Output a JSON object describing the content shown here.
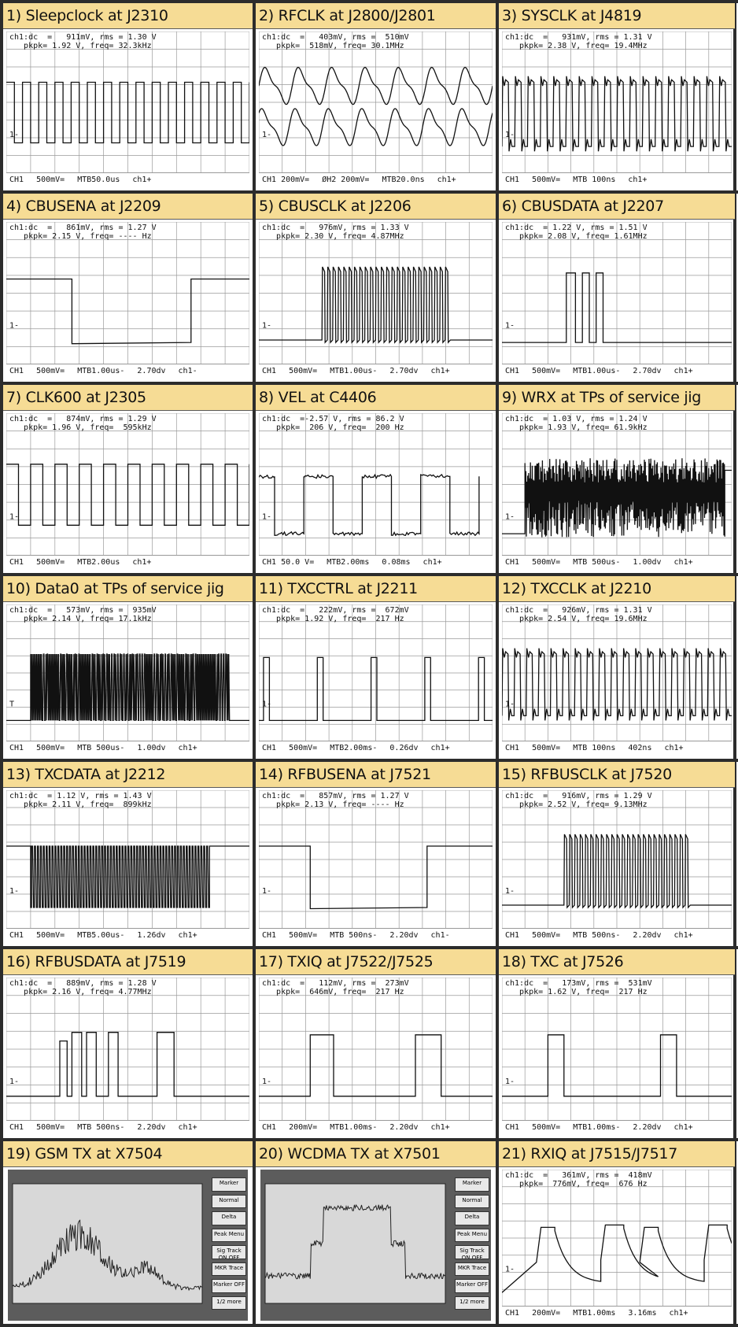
{
  "panels": [
    {
      "title": "1) Sleepclock at J2310",
      "hdr": "ch1:dc  =   911mV, rms = 1.30 V\n   pkpk= 1.92 V, freq= 32.3kHz",
      "ftr": [
        "CH1",
        "500mV=",
        "MTB50.0us",
        "ch1+"
      ],
      "wave": "square",
      "periods": 15,
      "marker": "1-"
    },
    {
      "title": "2) RFCLK at J2800/J2801",
      "hdr": "ch1:dc  =   403mV, rms =  510mV\n   pkpk=  518mV, freq= 30.1MHz",
      "ftr": [
        "CH1 200mV=",
        "ØH2 200mV=",
        "MTB20.0ns",
        "ch1+"
      ],
      "wave": "dualsine",
      "periods": 7,
      "marker": "1-"
    },
    {
      "title": "3) SYSCLK at J4819",
      "hdr": "ch1:dc  =   931mV, rms = 1.31 V\n   pkpk= 2.38 V, freq= 19.4MHz",
      "ftr": [
        "CH1",
        "500mV=",
        "MTB 100ns",
        "ch1+"
      ],
      "wave": "ringclock",
      "periods": 18,
      "marker": "1-"
    },
    {
      "title": "4) CBUSENA at J2209",
      "hdr": "ch1:dc  =   861mV, rms = 1.27 V\n   pkpk= 2.15 V, freq= ---- Hz",
      "ftr": [
        "CH1",
        "500mV=",
        "MTB1.00us-",
        "2.70dv",
        "ch1-"
      ],
      "wave": "enable",
      "marker": "1-"
    },
    {
      "title": "5) CBUSCLK at J2206",
      "hdr": "ch1:dc  =   976mV, rms = 1.33 V\n   pkpk= 2.30 V, freq= 4.87MHz",
      "ftr": [
        "CH1",
        "500mV=",
        "MTB1.00us-",
        "2.70dv",
        "ch1+"
      ],
      "wave": "burst",
      "periods": 24,
      "marker": "1-"
    },
    {
      "title": "6) CBUSDATA at J2207",
      "hdr": "ch1:dc  = 1.22 V, rms = 1.51 V\n   pkpk= 2.08 V, freq= 1.61MHz",
      "ftr": [
        "CH1",
        "500mV=",
        "MTB1.00us-",
        "2.70dv",
        "ch1+"
      ],
      "wave": "data3",
      "marker": "1-"
    },
    {
      "title": "7) CLK600 at J2305",
      "hdr": "ch1:dc  =   874mV, rms = 1.29 V\n   pkpk= 1.96 V, freq=  595kHz",
      "ftr": [
        "CH1",
        "500mV=",
        "MTB2.00us",
        "ch1+"
      ],
      "wave": "square",
      "periods": 10,
      "marker": "1-"
    },
    {
      "title": "8) VEL at C4406",
      "hdr": "ch1:dc  =-2.57 V, rms = 86.2 V\n   pkpk=  206 V, freq=  200 Hz",
      "ftr": [
        "CH1 50.0 V=",
        "MTB2.00ms",
        "0.08ms",
        "ch1+"
      ],
      "wave": "noisysquare",
      "periods": 4,
      "marker": "1-"
    },
    {
      "title": "9) WRX at TPs of service jig",
      "hdr": "ch1:dc  = 1.03 V, rms = 1.24 V\n   pkpk= 1.93 V, freq= 61.9kHz",
      "ftr": [
        "CH1",
        "500mV=",
        "MTB 500us-",
        "1.00dv",
        "ch1+"
      ],
      "wave": "dense",
      "marker": "1-"
    },
    {
      "title": "10) Data0 at TPs of service jig",
      "hdr": "ch1:dc  =   573mV, rms =  935mV\n   pkpk= 2.14 V, freq= 17.1kHz",
      "ftr": [
        "CH1",
        "500mV=",
        "MTB 500us-",
        "1.00dv",
        "ch1+"
      ],
      "wave": "densepulse",
      "marker": "T"
    },
    {
      "title": "11) TXCCTRL at J2211",
      "hdr": "ch1:dc  =   222mV, rms =  672mV\n   pkpk= 1.92 V, freq=  217 Hz",
      "ftr": [
        "CH1",
        "500mV=",
        "MTB2.00ms-",
        "0.26dv",
        "ch1+"
      ],
      "wave": "pulses",
      "periods": 5,
      "marker": "1-"
    },
    {
      "title": "12) TXCCLK at J2210",
      "hdr": "ch1:dc  =   926mV, rms = 1.31 V\n   pkpk= 2.54 V, freq= 19.6MHz",
      "ftr": [
        "CH1",
        "500mV=",
        "MTB 100ns",
        "402ns",
        "ch1+"
      ],
      "wave": "ringclock",
      "periods": 19,
      "marker": "1-"
    },
    {
      "title": "13) TXCDATA at J2212",
      "hdr": "ch1:dc  = 1.12 V, rms = 1.43 V\n   pkpk= 2.11 V, freq=  899kHz",
      "ftr": [
        "CH1",
        "500mV=",
        "MTB5.00us-",
        "1.26dv",
        "ch1+"
      ],
      "wave": "databurst",
      "marker": "1-"
    },
    {
      "title": "14) RFBUSENA at J7521",
      "hdr": "ch1:dc  =   857mV, rms = 1.27 V\n   pkpk= 2.13 V, freq= ---- Hz",
      "ftr": [
        "CH1",
        "500mV=",
        "MTB 500ns-",
        "2.20dv",
        "ch1-"
      ],
      "wave": "enable2",
      "marker": "1-"
    },
    {
      "title": "15) RFBUSCLK at J7520",
      "hdr": "ch1:dc  =   916mV, rms = 1.29 V\n   pkpk= 2.52 V, freq= 9.13MHz",
      "ftr": [
        "CH1",
        "500mV=",
        "MTB 500ns-",
        "2.20dv",
        "ch1+"
      ],
      "wave": "burst",
      "periods": 24,
      "marker": "1-"
    },
    {
      "title": "16) RFBUSDATA at J7519",
      "hdr": "ch1:dc  =   889mV, rms = 1.28 V\n   pkpk= 2.16 V, freq= 4.77MHz",
      "ftr": [
        "CH1",
        "500mV=",
        "MTB 500ns-",
        "2.20dv",
        "ch1+"
      ],
      "wave": "data4",
      "marker": "1-"
    },
    {
      "title": "17) TXIQ at J7522/J7525",
      "hdr": "ch1:dc  =   112mV, rms =  273mV\n   pkpk=  646mV, freq=  217 Hz",
      "ftr": [
        "CH1",
        "200mV=",
        "MTB1.00ms-",
        "2.20dv",
        "ch1+"
      ],
      "wave": "widepulse",
      "marker": "1-"
    },
    {
      "title": "18) TXC at J7526",
      "hdr": "ch1:dc  =   173mV, rms =  531mV\n   pkpk= 1.62 V, freq=  217 Hz",
      "ftr": [
        "CH1",
        "500mV=",
        "MTB1.00ms-",
        "2.20dv",
        "ch1+"
      ],
      "wave": "widepulse2",
      "marker": "1-"
    },
    {
      "title": "19) GSM TX at X7504",
      "spectrum": "gsm",
      "hdr": "",
      "ftr": []
    },
    {
      "title": "20) WCDMA TX at X7501",
      "spectrum": "wcdma",
      "hdr": "",
      "ftr": []
    },
    {
      "title": "21) RXIQ at J7515/J7517",
      "hdr": "ch1:dc  =   361mV, rms =  418mV\n   pkpk=  776mV, freq=  676 Hz",
      "ftr": [
        "CH1",
        "200mV=",
        "MTB1.00ms",
        "3.16ms",
        "ch1+"
      ],
      "wave": "rxiq",
      "marker": "1-"
    }
  ],
  "spectrum_menus": {
    "gsm": [
      "Marker",
      "Normal",
      "Delta",
      "Peak Menu",
      "Sig Track ON OFF",
      "MKR Trace",
      "Marker OFF",
      "1/2 more"
    ],
    "wcdma": [
      "Marker",
      "Normal",
      "Delta",
      "Peak Menu",
      "Sig Track ON OFF",
      "MKR Trace",
      "Marker OFF",
      "1/2 more"
    ]
  },
  "colors": {
    "title_bg": "#f6dc95",
    "border": "#2c2c2c",
    "grid": "#9a9a9a",
    "trace": "#111111",
    "spec_bg": "#5c5c5c",
    "spec_screen": "#d8d8d8"
  }
}
